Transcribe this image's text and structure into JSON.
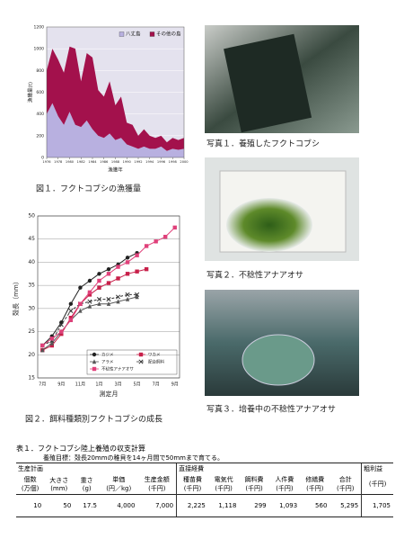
{
  "chart_data": [
    {
      "type": "area",
      "stacked": true,
      "caption": "図１．フクトコブシの漁獲量",
      "ylabel": "漁獲量(t)",
      "xlabel": "漁獲年",
      "x": [
        1976,
        1977,
        1978,
        1979,
        1980,
        1981,
        1982,
        1983,
        1984,
        1985,
        1986,
        1987,
        1988,
        1989,
        1990,
        1991,
        1992,
        1993,
        1994,
        1995,
        1996,
        1997,
        1998,
        1999,
        2000
      ],
      "series": [
        {
          "name": "八丈島",
          "color": "#b8b0e0",
          "values": [
            400,
            500,
            380,
            300,
            420,
            300,
            280,
            340,
            260,
            200,
            180,
            220,
            160,
            180,
            120,
            100,
            80,
            100,
            80,
            80,
            100,
            60,
            80,
            70,
            80
          ]
        },
        {
          "name": "その他の島",
          "color": "#a3114c",
          "values": [
            400,
            500,
            520,
            480,
            600,
            700,
            420,
            620,
            660,
            420,
            380,
            480,
            320,
            380,
            200,
            200,
            120,
            160,
            120,
            100,
            100,
            80,
            100,
            90,
            100
          ]
        }
      ],
      "xlim": [
        1976,
        2000
      ],
      "xticks": [
        1976,
        1978,
        1980,
        1982,
        1984,
        1986,
        1988,
        1990,
        1992,
        1994,
        1996,
        1998,
        2000
      ],
      "ylim": [
        0,
        1200
      ],
      "yticks": [
        0,
        200,
        400,
        600,
        800,
        1000,
        1200
      ],
      "grid": true,
      "legend": "top-right"
    },
    {
      "type": "line",
      "caption": "図２．餌料種類別フクトコブシの成長",
      "ylabel": "殻長（mm）",
      "xlabel": "測定月",
      "categories": [
        "7月",
        null,
        "9月",
        null,
        "11月",
        null,
        "1月",
        null,
        "3月",
        null,
        "5月",
        null,
        "7月",
        null,
        "9月"
      ],
      "series": [
        {
          "name": "カジメ",
          "color": "#222222",
          "marker": "circle",
          "dash": false,
          "values": [
            22,
            24,
            27,
            31,
            34.5,
            36,
            37.5,
            38.5,
            39.5,
            41,
            42,
            null,
            null,
            null,
            null
          ]
        },
        {
          "name": "ワカメ",
          "color": "#c8204a",
          "marker": "square",
          "dash": false,
          "values": [
            21,
            22,
            24.5,
            28,
            31,
            33,
            34.5,
            35.5,
            36.5,
            37.5,
            38,
            38.5,
            null,
            null,
            null
          ]
        },
        {
          "name": "アラメ",
          "color": "#555555",
          "marker": "triangle",
          "dash": false,
          "values": [
            21,
            22.5,
            25,
            27.5,
            29.5,
            30.5,
            31,
            31,
            31.5,
            32,
            32.5,
            null,
            null,
            null,
            null
          ]
        },
        {
          "name": "配合飼料",
          "color": "#333333",
          "marker": "cross",
          "dash": true,
          "values": [
            22,
            23,
            26.5,
            29.5,
            31,
            31.5,
            32,
            32,
            32.5,
            33,
            33,
            null,
            null,
            null,
            null
          ]
        },
        {
          "name": "不稔性アナアオサ",
          "color": "#e0407a",
          "marker": "square",
          "dash": false,
          "values": [
            22,
            23.5,
            25,
            27.5,
            31,
            33.5,
            36,
            37.5,
            39,
            40,
            41.5,
            43.5,
            44.5,
            45.5,
            47.5
          ]
        }
      ],
      "ylim": [
        15,
        50
      ],
      "yticks": [
        15,
        20,
        25,
        30,
        35,
        40,
        45,
        50
      ],
      "grid": true,
      "legend": "bottom-right"
    }
  ],
  "photos": [
    {
      "caption": "写真１．養殖したフクトコブシ"
    },
    {
      "caption": "写真２．不稔性アナアオサ"
    },
    {
      "caption": "写真３．培養中の不稔性アナアオサ"
    }
  ],
  "table": {
    "title": "表１．フクトコブシ陸上養殖の収支計算",
    "subtitle": "養殖目標：殻長20mmの稚貝を14ヶ月間で50mmまで育てる。",
    "groups": [
      {
        "name": "生産計画",
        "columns": [
          {
            "name": "個数",
            "unit": "(万個)"
          },
          {
            "name": "大きさ",
            "unit": "(mm)"
          },
          {
            "name": "重さ",
            "unit": "(g)"
          },
          {
            "name": "単価",
            "unit": "(円／kg)"
          },
          {
            "name": "生産金額",
            "unit": "(千円)"
          }
        ]
      },
      {
        "name": "直接経費",
        "columns": [
          {
            "name": "種苗費",
            "unit": "(千円)"
          },
          {
            "name": "電気代",
            "unit": "(千円)"
          },
          {
            "name": "餌料費",
            "unit": "(千円)"
          },
          {
            "name": "人件費",
            "unit": "(千円)"
          },
          {
            "name": "修繕費",
            "unit": "(千円)"
          },
          {
            "name": "合計",
            "unit": "(千円)"
          }
        ]
      },
      {
        "name": "粗利益",
        "columns": [
          {
            "name": "",
            "unit": "(千円)"
          }
        ]
      }
    ],
    "rows": [
      [
        "10",
        "50",
        "17.5",
        "4,000",
        "7,000",
        "2,225",
        "1,118",
        "299",
        "1,093",
        "560",
        "5,295",
        "1,705"
      ]
    ]
  }
}
